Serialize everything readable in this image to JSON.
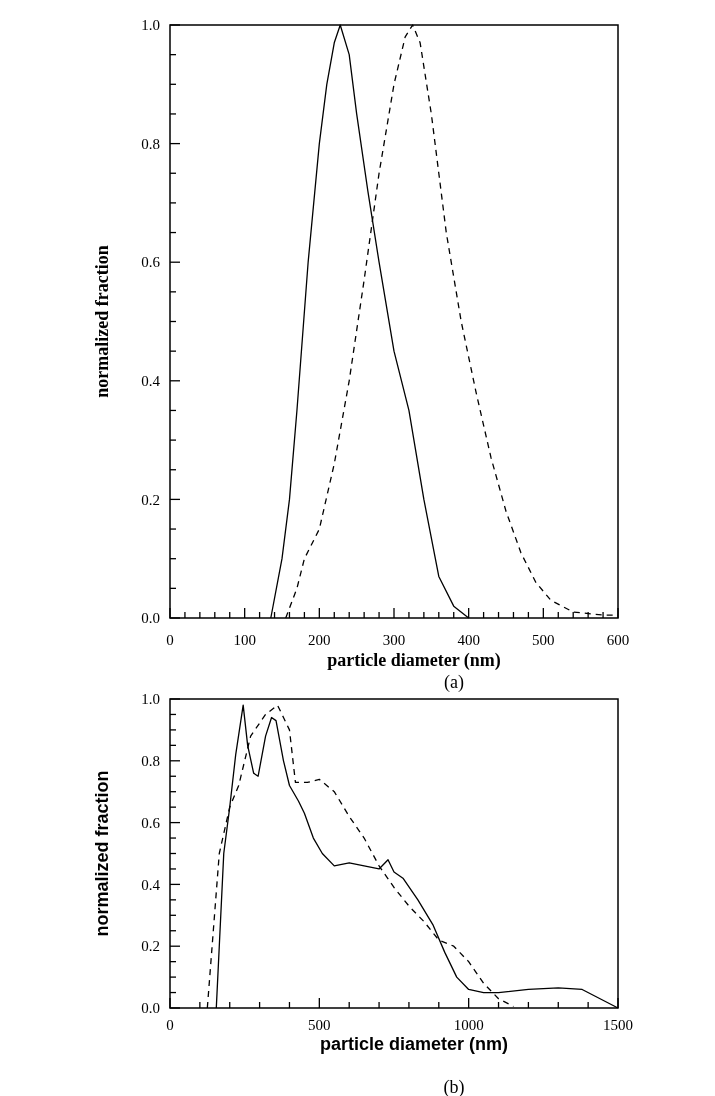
{
  "chart_data": [
    {
      "type": "line",
      "xlabel": "particle diameter (nm)",
      "ylabel": "normalized fraction",
      "annotations": [
        "(a)"
      ],
      "xlim": [
        0,
        600
      ],
      "ylim": [
        0,
        1
      ],
      "xticks": [
        0,
        {
          "value": 20,
          "label": null
        },
        {
          "value": 40,
          "label": null
        },
        {
          "value": 60,
          "label": null
        },
        {
          "value": 80,
          "label": null
        },
        100,
        {
          "value": 120,
          "label": null
        },
        {
          "value": 140,
          "label": null
        },
        {
          "value": 160,
          "label": null
        },
        {
          "value": 180,
          "label": null
        },
        200,
        {
          "value": 220,
          "label": null
        },
        {
          "value": 240,
          "label": null
        },
        {
          "value": 260,
          "label": null
        },
        {
          "value": 280,
          "label": null
        },
        300,
        {
          "value": 320,
          "label": null
        },
        {
          "value": 340,
          "label": null
        },
        {
          "value": 360,
          "label": null
        },
        {
          "value": 380,
          "label": null
        },
        400,
        {
          "value": 420,
          "label": null
        },
        {
          "value": 440,
          "label": null
        },
        {
          "value": 460,
          "label": null
        },
        {
          "value": 480,
          "label": null
        },
        500,
        {
          "value": 520,
          "label": null
        },
        {
          "value": 540,
          "label": null
        },
        {
          "value": 560,
          "label": null
        },
        {
          "value": 580,
          "label": null
        },
        600
      ],
      "yticks": [
        {
          "value": 0,
          "label": "0.0"
        },
        {
          "value": 0.05,
          "label": null
        },
        {
          "value": 0.1,
          "label": null
        },
        {
          "value": 0.15,
          "label": null
        },
        {
          "value": 0.2,
          "label": "0.2"
        },
        {
          "value": 0.25,
          "label": null
        },
        {
          "value": 0.3,
          "label": null
        },
        {
          "value": 0.35,
          "label": null
        },
        {
          "value": 0.4,
          "label": "0.4"
        },
        {
          "value": 0.45,
          "label": null
        },
        {
          "value": 0.5,
          "label": null
        },
        {
          "value": 0.55,
          "label": null
        },
        {
          "value": 0.6,
          "label": "0.6"
        },
        {
          "value": 0.65,
          "label": null
        },
        {
          "value": 0.7,
          "label": null
        },
        {
          "value": 0.75,
          "label": null
        },
        {
          "value": 0.8,
          "label": "0.8"
        },
        {
          "value": 0.85,
          "label": null
        },
        {
          "value": 0.9,
          "label": null
        },
        {
          "value": 0.95,
          "label": null
        },
        {
          "value": 1,
          "label": "1.0"
        }
      ],
      "series": [
        {
          "color": "#000000",
          "line_style": "solid",
          "x": [
            135,
            150,
            160,
            170,
            185,
            200,
            210,
            220,
            228,
            240,
            250,
            265,
            280,
            300,
            320,
            340,
            360,
            380,
            400
          ],
          "values": [
            0,
            0.1,
            0.2,
            0.35,
            0.6,
            0.8,
            0.9,
            0.97,
            1.0,
            0.95,
            0.85,
            0.72,
            0.6,
            0.45,
            0.35,
            0.2,
            0.07,
            0.02,
            0
          ]
        },
        {
          "color": "#000000",
          "line_style": "dashed",
          "x": [
            155,
            170,
            180,
            200,
            220,
            240,
            260,
            280,
            300,
            315,
            325,
            335,
            350,
            370,
            390,
            410,
            430,
            450,
            470,
            490,
            510,
            540,
            580,
            600
          ],
          "values": [
            0,
            0.05,
            0.1,
            0.15,
            0.26,
            0.4,
            0.57,
            0.75,
            0.9,
            0.98,
            1.0,
            0.97,
            0.85,
            0.65,
            0.5,
            0.38,
            0.27,
            0.18,
            0.11,
            0.06,
            0.03,
            0.01,
            0.005,
            0.005
          ]
        }
      ]
    },
    {
      "type": "line",
      "xlabel": "particle diameter (nm)",
      "ylabel": "normalized fraction",
      "annotations": [
        "(b)"
      ],
      "xlim": [
        0,
        1500
      ],
      "ylim": [
        0,
        1
      ],
      "xticks": [
        0,
        {
          "value": 100,
          "label": null
        },
        {
          "value": 200,
          "label": null
        },
        {
          "value": 300,
          "label": null
        },
        {
          "value": 400,
          "label": null
        },
        500,
        {
          "value": 600,
          "label": null
        },
        {
          "value": 700,
          "label": null
        },
        {
          "value": 800,
          "label": null
        },
        {
          "value": 900,
          "label": null
        },
        1000,
        {
          "value": 1100,
          "label": null
        },
        {
          "value": 1200,
          "label": null
        },
        {
          "value": 1300,
          "label": null
        },
        {
          "value": 1400,
          "label": null
        },
        1500
      ],
      "yticks": [
        {
          "value": 0,
          "label": "0.0"
        },
        {
          "value": 0.05,
          "label": null
        },
        {
          "value": 0.1,
          "label": null
        },
        {
          "value": 0.15,
          "label": null
        },
        {
          "value": 0.2,
          "label": "0.2"
        },
        {
          "value": 0.25,
          "label": null
        },
        {
          "value": 0.3,
          "label": null
        },
        {
          "value": 0.35,
          "label": null
        },
        {
          "value": 0.4,
          "label": "0.4"
        },
        {
          "value": 0.45,
          "label": null
        },
        {
          "value": 0.5,
          "label": null
        },
        {
          "value": 0.55,
          "label": null
        },
        {
          "value": 0.6,
          "label": "0.6"
        },
        {
          "value": 0.65,
          "label": null
        },
        {
          "value": 0.7,
          "label": null
        },
        {
          "value": 0.75,
          "label": null
        },
        {
          "value": 0.8,
          "label": "0.8"
        },
        {
          "value": 0.85,
          "label": null
        },
        {
          "value": 0.9,
          "label": null
        },
        {
          "value": 0.95,
          "label": null
        },
        {
          "value": 1,
          "label": "1.0"
        }
      ],
      "series": [
        {
          "color": "#000000",
          "line_style": "solid",
          "x": [
            155,
            165,
            180,
            200,
            220,
            245,
            260,
            280,
            295,
            320,
            340,
            355,
            380,
            400,
            430,
            450,
            480,
            510,
            550,
            600,
            650,
            700,
            730,
            750,
            780,
            830,
            880,
            920,
            960,
            1000,
            1050,
            1100,
            1200,
            1300,
            1380,
            1500
          ],
          "values": [
            0,
            0.2,
            0.5,
            0.65,
            0.82,
            0.98,
            0.85,
            0.76,
            0.75,
            0.88,
            0.94,
            0.93,
            0.8,
            0.72,
            0.67,
            0.63,
            0.55,
            0.5,
            0.46,
            0.47,
            0.46,
            0.45,
            0.48,
            0.44,
            0.42,
            0.35,
            0.27,
            0.18,
            0.1,
            0.06,
            0.05,
            0.05,
            0.06,
            0.065,
            0.06,
            0
          ]
        },
        {
          "color": "#000000",
          "line_style": "dashed",
          "x": [
            125,
            145,
            165,
            200,
            230,
            270,
            320,
            360,
            380,
            400,
            420,
            460,
            500,
            550,
            600,
            650,
            700,
            750,
            800,
            850,
            900,
            950,
            1000,
            1050,
            1100,
            1150
          ],
          "values": [
            0,
            0.25,
            0.5,
            0.65,
            0.72,
            0.88,
            0.95,
            0.98,
            0.94,
            0.9,
            0.73,
            0.73,
            0.74,
            0.7,
            0.62,
            0.55,
            0.46,
            0.39,
            0.33,
            0.28,
            0.22,
            0.2,
            0.15,
            0.08,
            0.03,
            0.005
          ]
        }
      ]
    }
  ]
}
